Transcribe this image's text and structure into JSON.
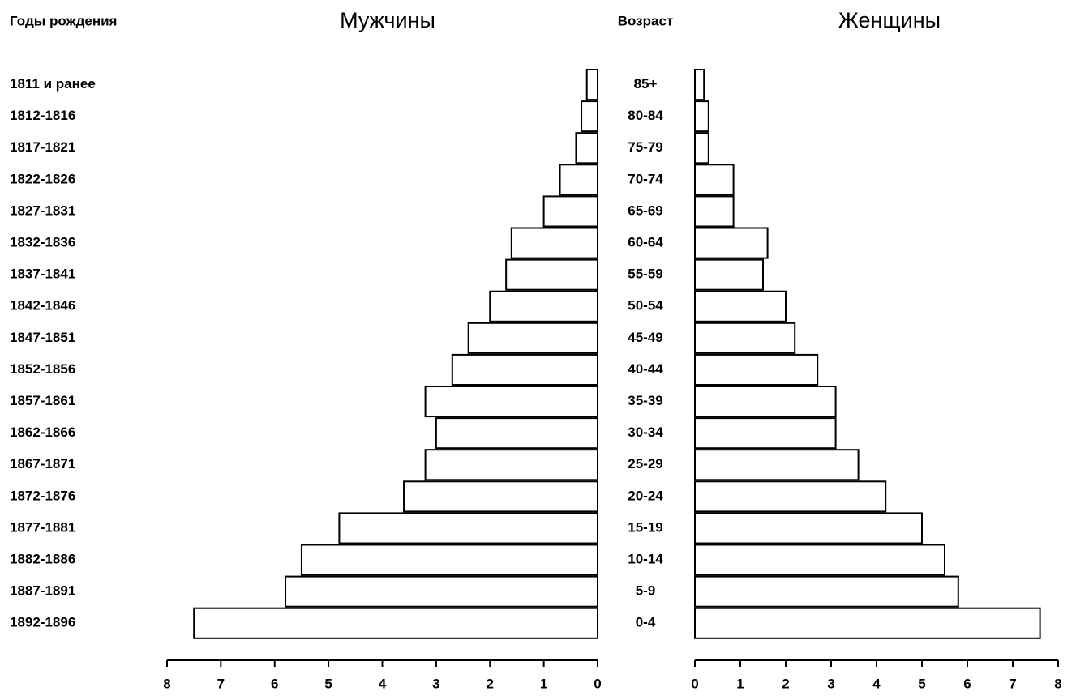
{
  "chart_data": {
    "type": "pyramid",
    "birth_years_label": "Годы рождения",
    "age_label": "Возраст",
    "categories": [
      "85+",
      "80-84",
      "75-79",
      "70-74",
      "65-69",
      "60-64",
      "55-59",
      "50-54",
      "45-49",
      "40-44",
      "35-39",
      "30-34",
      "25-29",
      "20-24",
      "15-19",
      "10-14",
      "5-9",
      "0-4"
    ],
    "birth_years": [
      "1811 и ранее",
      "1812-1816",
      "1817-1821",
      "1822-1826",
      "1827-1831",
      "1832-1836",
      "1837-1841",
      "1842-1846",
      "1847-1851",
      "1852-1856",
      "1857-1861",
      "1862-1866",
      "1867-1871",
      "1872-1876",
      "1877-1881",
      "1882-1886",
      "1887-1891",
      "1892-1896"
    ],
    "series": [
      {
        "name": "Мужчины",
        "color": "#ffffff",
        "values": [
          0.2,
          0.3,
          0.4,
          0.7,
          1.0,
          1.6,
          1.7,
          2.0,
          2.4,
          2.7,
          3.2,
          3.0,
          3.2,
          3.6,
          4.8,
          5.5,
          5.8,
          7.5
        ]
      },
      {
        "name": "Женщины",
        "color": "#ffffff",
        "values": [
          0.2,
          0.3,
          0.3,
          0.85,
          0.85,
          1.6,
          1.5,
          2.0,
          2.2,
          2.7,
          3.1,
          3.1,
          3.6,
          4.2,
          5.0,
          5.5,
          5.8,
          7.6
        ]
      }
    ],
    "xlim": [
      0,
      8
    ],
    "xticks": [
      0,
      1,
      2,
      3,
      4,
      5,
      6,
      7,
      8
    ]
  }
}
